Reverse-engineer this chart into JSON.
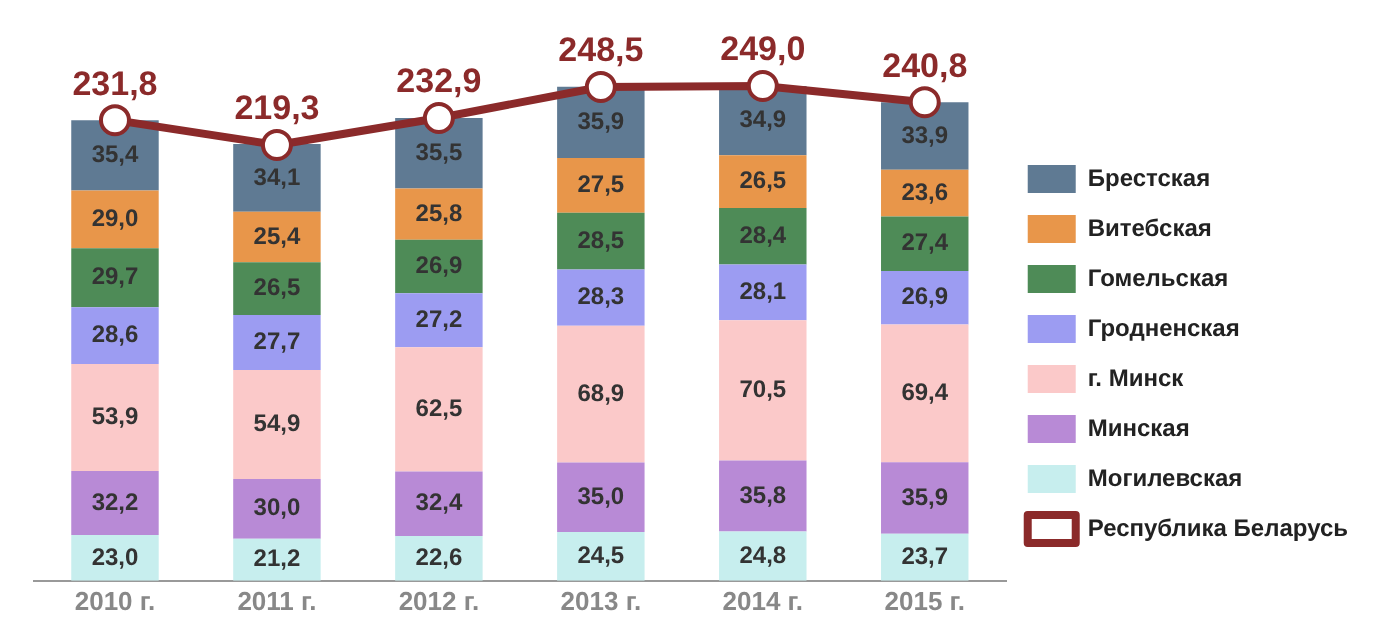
{
  "chart_data": {
    "type": "bar",
    "stacked": true,
    "categories": [
      "2010 г.",
      "2011 г.",
      "2012 г.",
      "2013 г.",
      "2014 г.",
      "2015 г."
    ],
    "series": [
      {
        "name": "Могилевская",
        "color": "#c7eeee",
        "values": [
          23.0,
          21.2,
          22.6,
          24.5,
          24.8,
          23.7
        ],
        "value_labels": [
          "23,0",
          "21,2",
          "22,6",
          "24,5",
          "24,8",
          "23,7"
        ]
      },
      {
        "name": "Минская",
        "color": "#b88ad6",
        "values": [
          32.2,
          30.0,
          32.4,
          35.0,
          35.8,
          35.9
        ],
        "value_labels": [
          "32,2",
          "30,0",
          "32,4",
          "35,0",
          "35,8",
          "35,9"
        ]
      },
      {
        "name": "г. Минск",
        "color": "#fbc9c9",
        "values": [
          53.9,
          54.9,
          62.5,
          68.9,
          70.5,
          69.4
        ],
        "value_labels": [
          "53,9",
          "54,9",
          "62,5",
          "68,9",
          "70,5",
          "69,4"
        ]
      },
      {
        "name": "Гродненская",
        "color": "#9c9cf2",
        "values": [
          28.6,
          27.7,
          27.2,
          28.3,
          28.1,
          26.9
        ],
        "value_labels": [
          "28,6",
          "27,7",
          "27,2",
          "28,3",
          "28,1",
          "26,9"
        ]
      },
      {
        "name": "Гомельская",
        "color": "#4e8b57",
        "values": [
          29.7,
          26.5,
          26.9,
          28.5,
          28.4,
          27.4
        ],
        "value_labels": [
          "29,7",
          "26,5",
          "26,9",
          "28,5",
          "28,4",
          "27,4"
        ]
      },
      {
        "name": "Витебская",
        "color": "#e8964a",
        "values": [
          29.0,
          25.4,
          25.8,
          27.5,
          26.5,
          23.6
        ],
        "value_labels": [
          "29,0",
          "25,4",
          "25,8",
          "27,5",
          "26,5",
          "23,6"
        ]
      },
      {
        "name": "Брестская",
        "color": "#5f7a93",
        "values": [
          35.4,
          34.1,
          35.5,
          35.9,
          34.9,
          33.9
        ],
        "value_labels": [
          "35,4",
          "34,1",
          "35,5",
          "35,9",
          "34,9",
          "33,9"
        ]
      },
      {
        "name": "Республика Беларусь",
        "type": "line",
        "color": "#8b2a2a",
        "values": [
          231.8,
          219.3,
          232.9,
          248.5,
          249.0,
          240.8
        ],
        "value_labels": [
          "231,8",
          "219,3",
          "232,9",
          "248,5",
          "249,0",
          "240,8"
        ]
      }
    ],
    "legend": "right",
    "marker": "circle",
    "grid": false,
    "tick_labels": "x"
  }
}
